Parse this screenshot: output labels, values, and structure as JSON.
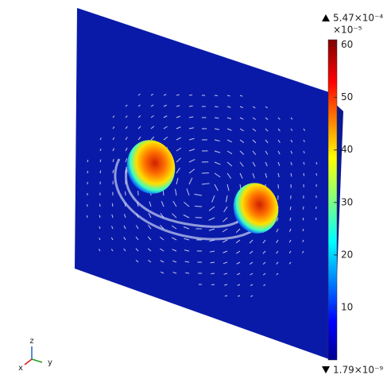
{
  "colorbar": {
    "max_label": "5.47×10⁻⁴",
    "scale_label": "×10⁻⁵",
    "min_label": "1.79×10⁻⁹",
    "range": [
      0,
      61
    ],
    "ticks": [
      10,
      20,
      30,
      40,
      50,
      60
    ]
  },
  "triad": {
    "z": "z",
    "y": "y",
    "x": "x"
  }
}
